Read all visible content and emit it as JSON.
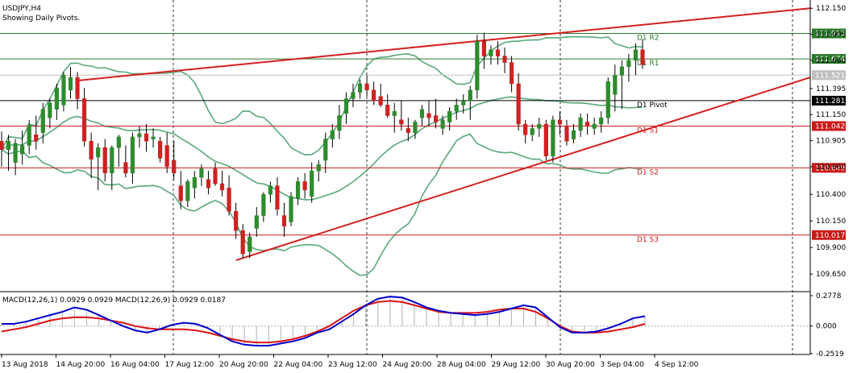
{
  "header": {
    "symbol_line": "USDJPY,H4",
    "subtitle": "Showing Daily Pivots."
  },
  "macd_label": "MACD(12,26,1) 0.0929 0.0929 MACD(12,26,9) 0.0929 0.0187",
  "colors": {
    "background": "#ffffff",
    "bull_candle": "#2e8b2e",
    "bear_candle": "#cc2222",
    "bollinger": "#5aa87a",
    "trendline": "#d42020",
    "pivot_green": "#2b7a2b",
    "pivot_black": "#000000",
    "pivot_red": "#cc1a1a",
    "macd_line": "#0000cc",
    "signal_line": "#dd1111",
    "histogram": "#b0b0b0"
  },
  "chart_data": [
    {
      "type": "candlestick",
      "symbol": "USDJPY",
      "timeframe": "H4",
      "ylim": [
        109.5,
        112.22
      ],
      "y_ticks": [
        "112.150",
        "111.905",
        "111.660",
        "111.395",
        "111.150",
        "110.905",
        "110.660",
        "110.400",
        "110.150",
        "109.900",
        "109.650"
      ],
      "x_ticks": [
        "13 Aug 2018",
        "14 Aug 20:00",
        "16 Aug 04:00",
        "17 Aug 12:00",
        "20 Aug 20:00",
        "22 Aug 04:00",
        "23 Aug 12:00",
        "24 Aug 20:00",
        "28 Aug 04:00",
        "29 Aug 12:00",
        "30 Aug 20:00",
        "3 Sep 04:00",
        "4 Sep 12:00"
      ],
      "pivot_levels": [
        {
          "name": "D1 R2",
          "value": 111.913,
          "label": "111.913",
          "color": "green"
        },
        {
          "name": "D1 R1",
          "value": 111.674,
          "label": "111.674",
          "color": "green"
        },
        {
          "name": "D1 Pivot",
          "value": 111.281,
          "label": "111.281",
          "color": "black"
        },
        {
          "name": "D1 S1",
          "value": 111.042,
          "label": "111.042",
          "color": "red"
        },
        {
          "name": "D1 S2",
          "value": 110.649,
          "label": "110.649",
          "color": "red"
        },
        {
          "name": "D1 S3",
          "value": 110.017,
          "label": "110.017",
          "color": "red"
        }
      ],
      "price_labels": [
        {
          "value": 111.521,
          "label": "111.521"
        }
      ],
      "candles": [
        [
          110.9,
          110.99,
          110.66,
          110.82
        ],
        [
          110.82,
          110.96,
          110.62,
          110.9
        ],
        [
          110.7,
          110.92,
          110.58,
          110.88
        ],
        [
          110.78,
          111.0,
          110.68,
          110.86
        ],
        [
          110.86,
          111.1,
          110.78,
          111.05
        ],
        [
          110.96,
          111.14,
          110.82,
          110.9
        ],
        [
          110.98,
          111.26,
          110.88,
          111.2
        ],
        [
          111.12,
          111.3,
          111.02,
          111.26
        ],
        [
          111.2,
          111.44,
          111.1,
          111.4
        ],
        [
          111.24,
          111.55,
          111.18,
          111.52
        ],
        [
          111.38,
          111.6,
          111.3,
          111.5
        ],
        [
          111.5,
          111.55,
          111.2,
          111.3
        ],
        [
          111.3,
          111.4,
          110.85,
          110.9
        ],
        [
          110.9,
          110.98,
          110.55,
          110.73
        ],
        [
          110.75,
          110.88,
          110.44,
          110.84
        ],
        [
          110.84,
          110.92,
          110.52,
          110.6
        ],
        [
          110.6,
          110.86,
          110.44,
          110.84
        ],
        [
          110.84,
          110.96,
          110.66,
          110.94
        ],
        [
          110.7,
          110.86,
          110.56,
          110.6
        ],
        [
          110.6,
          110.98,
          110.5,
          110.94
        ],
        [
          110.94,
          111.04,
          110.84,
          110.97
        ],
        [
          110.97,
          111.06,
          110.8,
          110.9
        ],
        [
          110.92,
          111.02,
          110.84,
          110.94
        ],
        [
          110.9,
          110.94,
          110.7,
          110.74
        ],
        [
          110.86,
          110.98,
          110.6,
          110.66
        ],
        [
          110.72,
          110.9,
          110.54,
          110.6
        ],
        [
          110.48,
          110.62,
          110.26,
          110.34
        ],
        [
          110.34,
          110.54,
          110.28,
          110.52
        ],
        [
          110.46,
          110.62,
          110.36,
          110.56
        ],
        [
          110.56,
          110.68,
          110.48,
          110.64
        ],
        [
          110.54,
          110.62,
          110.4,
          110.46
        ],
        [
          110.64,
          110.7,
          110.48,
          110.5
        ],
        [
          110.5,
          110.62,
          110.38,
          110.44
        ],
        [
          110.46,
          110.58,
          110.2,
          110.24
        ],
        [
          110.24,
          110.32,
          109.98,
          110.06
        ],
        [
          110.06,
          110.12,
          109.8,
          109.84
        ],
        [
          109.86,
          110.04,
          109.8,
          110.0
        ],
        [
          110.08,
          110.28,
          110.0,
          110.2
        ],
        [
          110.2,
          110.42,
          110.14,
          110.4
        ],
        [
          110.4,
          110.52,
          110.32,
          110.48
        ],
        [
          110.48,
          110.56,
          110.2,
          110.26
        ],
        [
          110.2,
          110.32,
          110.0,
          110.1
        ],
        [
          110.14,
          110.42,
          110.1,
          110.38
        ],
        [
          110.36,
          110.56,
          110.3,
          110.52
        ],
        [
          110.52,
          110.6,
          110.36,
          110.44
        ],
        [
          110.38,
          110.7,
          110.32,
          110.62
        ],
        [
          110.62,
          110.72,
          110.52,
          110.68
        ],
        [
          110.72,
          110.98,
          110.6,
          110.92
        ],
        [
          110.92,
          111.06,
          110.84,
          111.0
        ],
        [
          111.0,
          111.24,
          110.92,
          111.14
        ],
        [
          111.16,
          111.36,
          111.06,
          111.3
        ],
        [
          111.3,
          111.44,
          111.22,
          111.36
        ],
        [
          111.36,
          111.48,
          111.3,
          111.44
        ],
        [
          111.44,
          111.52,
          111.32,
          111.38
        ],
        [
          111.38,
          111.46,
          111.24,
          111.28
        ],
        [
          111.32,
          111.44,
          111.22,
          111.24
        ],
        [
          111.24,
          111.34,
          111.12,
          111.14
        ],
        [
          111.14,
          111.26,
          110.98,
          111.18
        ],
        [
          111.1,
          111.28,
          111.0,
          111.06
        ],
        [
          111.02,
          111.12,
          110.9,
          110.98
        ],
        [
          110.98,
          111.1,
          110.92,
          111.08
        ],
        [
          111.12,
          111.24,
          111.04,
          111.2
        ],
        [
          111.16,
          111.28,
          111.04,
          111.12
        ],
        [
          111.14,
          111.3,
          111.02,
          111.08
        ],
        [
          111.02,
          111.14,
          110.96,
          111.1
        ],
        [
          111.08,
          111.22,
          111.0,
          111.18
        ],
        [
          111.18,
          111.3,
          111.1,
          111.24
        ],
        [
          111.24,
          111.34,
          111.16,
          111.28
        ],
        [
          111.28,
          111.42,
          111.1,
          111.38
        ],
        [
          111.38,
          111.9,
          111.3,
          111.84
        ],
        [
          111.84,
          111.92,
          111.58,
          111.7
        ],
        [
          111.7,
          111.8,
          111.62,
          111.76
        ],
        [
          111.76,
          111.84,
          111.62,
          111.7
        ],
        [
          111.7,
          111.78,
          111.54,
          111.64
        ],
        [
          111.64,
          111.7,
          111.36,
          111.44
        ],
        [
          111.44,
          111.54,
          111.0,
          111.06
        ],
        [
          111.06,
          111.1,
          110.88,
          110.96
        ],
        [
          110.96,
          111.06,
          110.9,
          111.02
        ],
        [
          111.02,
          111.12,
          110.94,
          111.06
        ],
        [
          111.06,
          111.1,
          110.72,
          110.76
        ],
        [
          110.76,
          111.14,
          110.7,
          111.1
        ],
        [
          111.1,
          111.18,
          110.96,
          111.06
        ],
        [
          111.04,
          111.1,
          110.86,
          110.9
        ],
        [
          110.92,
          111.06,
          110.88,
          111.0
        ],
        [
          111.0,
          111.16,
          110.94,
          111.12
        ],
        [
          111.08,
          111.16,
          110.96,
          111.04
        ],
        [
          111.02,
          111.12,
          110.96,
          111.06
        ],
        [
          111.06,
          111.18,
          110.98,
          111.12
        ],
        [
          111.12,
          111.5,
          111.06,
          111.46
        ],
        [
          111.34,
          111.62,
          111.18,
          111.52
        ],
        [
          111.52,
          111.66,
          111.2,
          111.6
        ],
        [
          111.6,
          111.72,
          111.46,
          111.66
        ],
        [
          111.66,
          111.82,
          111.52,
          111.76
        ],
        [
          111.76,
          111.86,
          111.58,
          111.62
        ]
      ]
    },
    {
      "type": "macd",
      "params": "MACD(12,26,9)",
      "ylim": [
        -0.26,
        0.3
      ],
      "y_ticks": [
        "0.2778",
        "0.000",
        "-0.2519"
      ],
      "macd": [
        0.02,
        0.02,
        0.04,
        0.07,
        0.1,
        0.13,
        0.17,
        0.15,
        0.1,
        0.05,
        0.0,
        -0.04,
        -0.06,
        -0.03,
        0.01,
        0.03,
        0.02,
        -0.02,
        -0.08,
        -0.14,
        -0.17,
        -0.18,
        -0.18,
        -0.16,
        -0.14,
        -0.11,
        -0.06,
        -0.03,
        0.04,
        0.11,
        0.19,
        0.25,
        0.27,
        0.26,
        0.22,
        0.17,
        0.14,
        0.12,
        0.11,
        0.1,
        0.11,
        0.13,
        0.16,
        0.19,
        0.17,
        0.08,
        -0.01,
        -0.06,
        -0.06,
        -0.05,
        -0.02,
        0.02,
        0.07,
        0.09
      ],
      "signal": [
        -0.05,
        -0.03,
        -0.01,
        0.02,
        0.05,
        0.07,
        0.08,
        0.08,
        0.07,
        0.05,
        0.03,
        0.0,
        -0.02,
        -0.03,
        -0.03,
        -0.03,
        -0.04,
        -0.06,
        -0.09,
        -0.12,
        -0.14,
        -0.15,
        -0.15,
        -0.14,
        -0.12,
        -0.09,
        -0.05,
        0.0,
        0.07,
        0.14,
        0.19,
        0.22,
        0.23,
        0.22,
        0.19,
        0.16,
        0.13,
        0.12,
        0.12,
        0.12,
        0.13,
        0.15,
        0.16,
        0.16,
        0.13,
        0.07,
        0.0,
        -0.05,
        -0.06,
        -0.06,
        -0.05,
        -0.03,
        -0.01,
        0.02
      ],
      "bars": [
        0.02,
        0.02,
        0.04,
        0.07,
        0.1,
        0.13,
        0.17,
        0.15,
        0.1,
        0.05,
        0.0,
        -0.04,
        -0.06,
        -0.03,
        0.01,
        0.03,
        0.02,
        -0.02,
        -0.08,
        -0.14,
        -0.17,
        -0.18,
        -0.18,
        -0.16,
        -0.14,
        -0.11,
        -0.06,
        -0.03,
        0.04,
        0.11,
        0.19,
        0.25,
        0.27,
        0.26,
        0.22,
        0.17,
        0.14,
        0.12,
        0.11,
        0.1,
        0.11,
        0.13,
        0.16,
        0.19,
        0.17,
        0.08,
        -0.01,
        -0.06,
        -0.06,
        -0.05,
        -0.02,
        0.02,
        0.07,
        0.09
      ]
    }
  ]
}
